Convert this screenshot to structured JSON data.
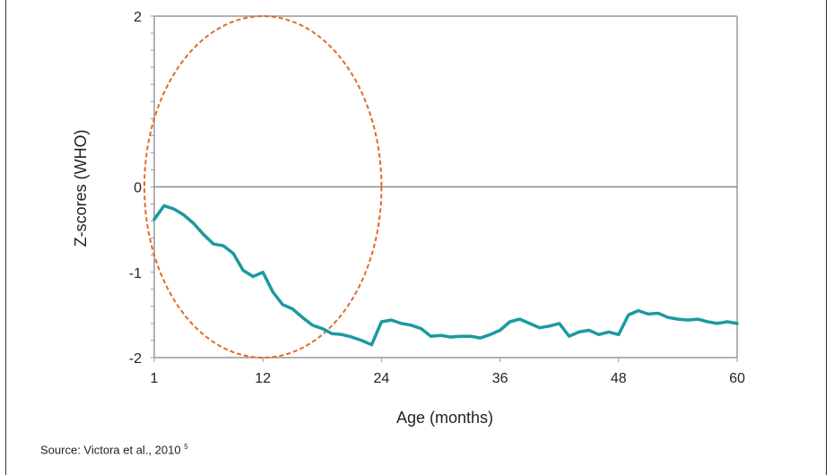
{
  "chart_data": {
    "type": "line",
    "title": "",
    "xlabel": "Age (months)",
    "ylabel": "Z-scores (WHO)",
    "xlim": [
      1,
      60
    ],
    "ylim": [
      -2,
      2
    ],
    "x_ticks": [
      1,
      12,
      24,
      36,
      48,
      60
    ],
    "y_ticks": [
      -2,
      -1,
      0,
      2
    ],
    "grid": false,
    "colors": {
      "line": "#1a9aa0",
      "ellipse": "#e06a2c",
      "axis": "#999999",
      "zero_line": "#8a8a8a"
    },
    "series": [
      {
        "x": [
          1,
          2,
          3,
          4,
          5,
          6,
          7,
          8,
          9,
          10,
          11,
          12,
          13,
          14,
          15,
          16,
          17,
          18,
          19,
          20,
          21,
          22,
          23,
          24,
          25,
          26,
          27,
          28,
          29,
          30,
          31,
          32,
          33,
          34,
          35,
          36,
          37,
          38,
          39,
          40,
          41,
          42,
          43,
          44,
          45,
          46,
          47,
          48,
          49,
          50,
          51,
          52,
          53,
          54,
          55,
          56,
          57,
          58,
          59,
          60
        ],
        "y": [
          -0.38,
          -0.22,
          -0.26,
          -0.33,
          -0.43,
          -0.56,
          -0.67,
          -0.69,
          -0.78,
          -0.98,
          -1.05,
          -1.0,
          -1.23,
          -1.38,
          -1.43,
          -1.53,
          -1.62,
          -1.66,
          -1.72,
          -1.73,
          -1.76,
          -1.8,
          -1.85,
          -1.58,
          -1.56,
          -1.6,
          -1.62,
          -1.66,
          -1.75,
          -1.74,
          -1.76,
          -1.75,
          -1.75,
          -1.77,
          -1.73,
          -1.68,
          -1.58,
          -1.55,
          -1.6,
          -1.65,
          -1.63,
          -1.6,
          -1.75,
          -1.7,
          -1.68,
          -1.73,
          -1.7,
          -1.73,
          -1.5,
          -1.45,
          -1.49,
          -1.48,
          -1.53,
          -1.55,
          -1.56,
          -1.55,
          -1.58,
          -1.6,
          -1.58,
          -1.6
        ]
      }
    ],
    "annotations": [
      {
        "type": "ellipse",
        "style": "dashed",
        "cx": 12,
        "cy": 0,
        "rx": 12,
        "ry": 2
      }
    ]
  },
  "source": {
    "text": "Source: Victora et al., 2010",
    "sup": "5"
  }
}
